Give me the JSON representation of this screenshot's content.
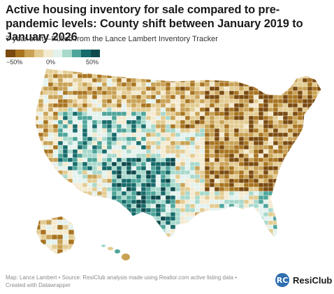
{
  "title": "Active housing inventory for sale compared to pre-pandemic levels: County shift between January 2019 to January 2026",
  "subtitle": "7-year shift—Pulled from the Lance Lambert Inventory Tracker",
  "legend": {
    "labels": [
      "−50%",
      "0%",
      "50%"
    ],
    "colors": [
      "#7a4a10",
      "#a87420",
      "#c9a255",
      "#e3cc92",
      "#f4ead0",
      "#e4f2ee",
      "#a8d9cc",
      "#4ea59a",
      "#176b6b",
      "#0e4a4c"
    ],
    "range": [
      -50,
      50
    ]
  },
  "footer": {
    "line1": "Map: Lance Lambert • Source: ResiClub analysis made using Realtor.com active listing data •",
    "line2": "Created with Datawrapper"
  },
  "brand": {
    "mark": "RC",
    "name": "ResiClub"
  }
}
